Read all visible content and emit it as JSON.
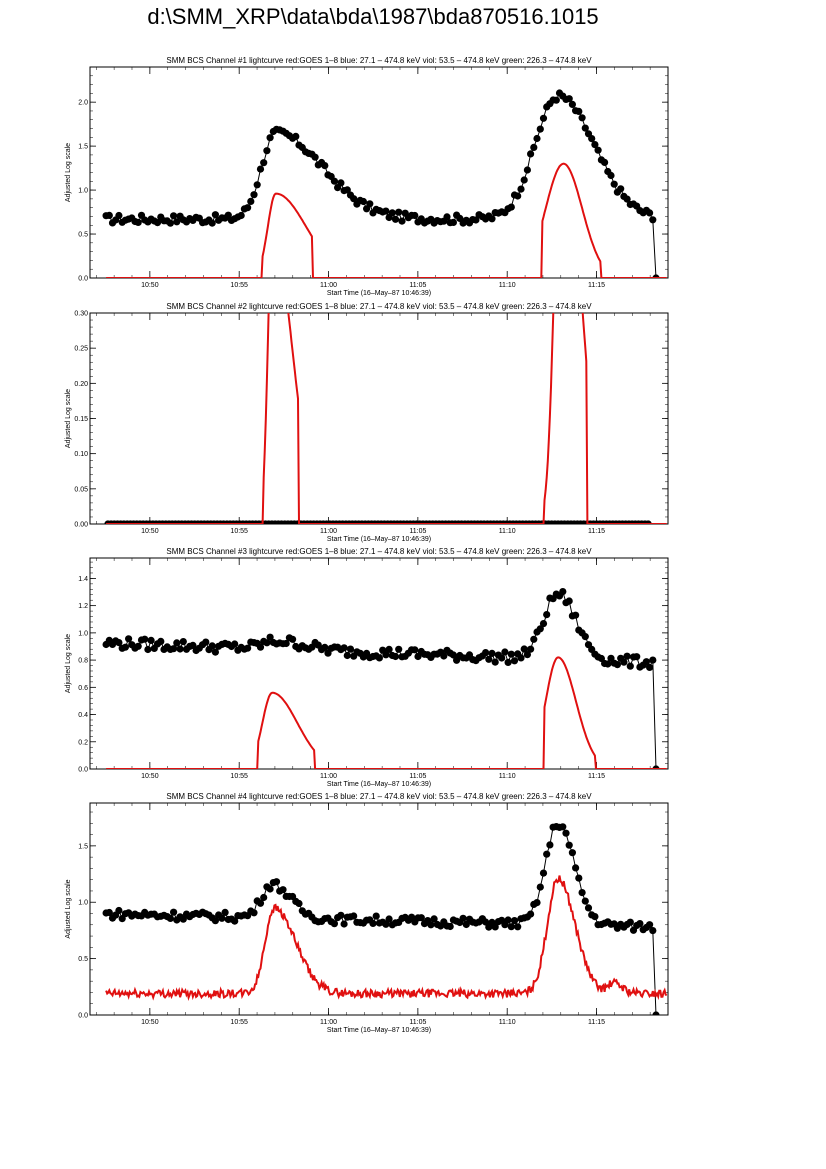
{
  "page_title": "d:\\SMM_XRP\\data\\bda\\1987\\bda870516.1015",
  "colors": {
    "goes": "#e01010",
    "bcs": "#000000",
    "frame": "#000000",
    "background": "#ffffff"
  },
  "chart_data": [
    {
      "type": "line",
      "title": "SMM BCS Channel #1 lightcurve  red:GOES 1–8  blue: 27.1 – 474.8 keV  viol: 53.5 – 474.8 keV  green: 226.3 – 474.8 keV",
      "xlabel": "Start Time (16–May–87 10:46:39)",
      "ylabel": "Adjusted Log scale",
      "xlim": [
        "10:46:39",
        "11:19:00"
      ],
      "ylim": [
        0,
        2.4
      ],
      "x_ticks": [
        "10:50",
        "10:55",
        "11:00",
        "11:05",
        "11:10",
        "11:15"
      ],
      "y_ticks": [
        "0.0",
        "0.5",
        "1.0",
        "1.5",
        "2.0"
      ],
      "y_tick_values": [
        0,
        0.5,
        1.0,
        1.5,
        2.0
      ],
      "series": [
        {
          "color": "#000000",
          "marker": "circle",
          "profile": {
            "base": 0.67,
            "drift": 0.0,
            "noise": 0.05,
            "drop_at": 31.5,
            "end": 31.7,
            "peaks": [
              {
                "t": 10.4,
                "amp": 0.98,
                "rise": 0.8,
                "decay": 2.6
              },
              {
                "t": 26.2,
                "amp": 1.4,
                "rise": 1.3,
                "decay": 2.0
              }
            ]
          }
        },
        {
          "color": "#e01010",
          "marker": "none",
          "profile": {
            "base": 0.0,
            "noise": 0.0,
            "end": 32.3,
            "peaks": [
              {
                "t": 10.4,
                "amp": 0.96,
                "rise": 0.45,
                "decay": 1.7,
                "start": 9.65,
                "stop": 12.45
              },
              {
                "t": 26.5,
                "amp": 1.3,
                "rise": 1.0,
                "decay": 1.05,
                "start": 25.3,
                "stop": 28.6
              }
            ]
          }
        }
      ]
    },
    {
      "type": "line",
      "title": "SMM BCS Channel #2 lightcurve  red:GOES 1–8  blue: 27.1 – 474.8 keV  viol: 53.5 – 474.8 keV  green: 226.3 – 474.8 keV",
      "xlabel": "Start Time (16–May–87 10:46:39)",
      "ylabel": "Adjusted Log scale",
      "xlim": [
        "10:46:39",
        "11:19:00"
      ],
      "ylim": [
        0,
        0.3
      ],
      "x_ticks": [
        "10:50",
        "10:55",
        "11:00",
        "11:05",
        "11:10",
        "11:15"
      ],
      "y_ticks": [
        "0.00",
        "0.05",
        "0.10",
        "0.15",
        "0.20",
        "0.25",
        "0.30"
      ],
      "y_tick_values": [
        0,
        0.05,
        0.1,
        0.15,
        0.2,
        0.25,
        0.3
      ],
      "series": [
        {
          "color": "#000000",
          "marker": "circle",
          "profile": {
            "base": 0.0,
            "noise": 0.0,
            "start": 1.0,
            "end": 31.3,
            "peaks": []
          }
        },
        {
          "color": "#e01010",
          "marker": "none",
          "profile": {
            "base": 0.0,
            "noise": 0.0,
            "end": 32.3,
            "clip": true,
            "peaks": [
              {
                "t": 10.2,
                "amp": 0.42,
                "rise": 0.25,
                "decay": 1.1,
                "start": 9.7,
                "stop": 11.7
              },
              {
                "t": 26.4,
                "amp": 0.6,
                "rise": 0.4,
                "decay": 1.0,
                "start": 25.4,
                "stop": 27.8
              }
            ]
          }
        }
      ]
    },
    {
      "type": "line",
      "title": "SMM BCS Channel #3 lightcurve  red:GOES 1–8  blue: 27.1 – 474.8 keV  viol: 53.5 – 474.8 keV  green: 226.3 – 474.8 keV",
      "xlabel": "Start Time (16–May–87 10:46:39)",
      "ylabel": "Adjusted Log scale",
      "xlim": [
        "10:46:39",
        "11:19:00"
      ],
      "ylim": [
        0,
        1.55
      ],
      "x_ticks": [
        "10:50",
        "10:55",
        "11:00",
        "11:05",
        "11:10",
        "11:15"
      ],
      "y_ticks": [
        "0.0",
        "0.2",
        "0.4",
        "0.6",
        "0.8",
        "1.0",
        "1.2",
        "1.4"
      ],
      "y_tick_values": [
        0,
        0.2,
        0.4,
        0.6,
        0.8,
        1.0,
        1.2,
        1.4
      ],
      "series": [
        {
          "color": "#000000",
          "marker": "circle",
          "profile": {
            "base": 0.93,
            "drift": -0.15,
            "noise": 0.04,
            "drop_at": 31.5,
            "end": 31.7,
            "peaks": [
              {
                "t": 26.2,
                "amp": 0.48,
                "rise": 0.8,
                "decay": 1.0
              },
              {
                "t": 10.5,
                "amp": 0.06,
                "rise": 0.8,
                "decay": 1.5
              }
            ]
          }
        },
        {
          "color": "#e01010",
          "marker": "none",
          "profile": {
            "base": 0.0,
            "noise": 0.0,
            "end": 32.3,
            "peaks": [
              {
                "t": 10.2,
                "amp": 0.56,
                "rise": 0.55,
                "decay": 1.4,
                "start": 9.4,
                "stop": 12.6
              },
              {
                "t": 26.2,
                "amp": 0.82,
                "rise": 0.7,
                "decay": 1.0,
                "start": 25.4,
                "stop": 28.3
              }
            ]
          }
        }
      ]
    },
    {
      "type": "line",
      "title": "SMM BCS Channel #4 lightcurve  red:GOES 1–8  blue: 27.1 – 474.8 keV  viol: 53.5 – 474.8 keV  green: 226.3 – 474.8 keV",
      "xlabel": "Start Time (16–May–87 10:46:39)",
      "ylabel": "Adjusted Log scale",
      "xlim": [
        "10:46:39",
        "11:19:00"
      ],
      "ylim": [
        0,
        1.88
      ],
      "x_ticks": [
        "10:50",
        "10:55",
        "11:00",
        "11:05",
        "11:10",
        "11:15"
      ],
      "y_ticks": [
        "0.0",
        "0.5",
        "1.0",
        "1.5"
      ],
      "y_tick_values": [
        0,
        0.5,
        1.0,
        1.5
      ],
      "series": [
        {
          "color": "#000000",
          "marker": "circle",
          "profile": {
            "base": 0.9,
            "drift": -0.12,
            "noise": 0.04,
            "drop_at": 31.5,
            "end": 31.7,
            "peaks": [
              {
                "t": 10.2,
                "amp": 0.3,
                "rise": 0.6,
                "decay": 1.0
              },
              {
                "t": 26.2,
                "amp": 0.9,
                "rise": 0.7,
                "decay": 0.9
              }
            ]
          }
        },
        {
          "color": "#e01010",
          "marker": "none",
          "profile": {
            "base": 0.19,
            "noise": 0.035,
            "end": 32.3,
            "peaks": [
              {
                "t": 10.3,
                "amp": 0.76,
                "rise": 0.5,
                "decay": 1.2
              },
              {
                "t": 26.2,
                "amp": 1.02,
                "rise": 0.6,
                "decay": 0.95
              },
              {
                "t": 29.3,
                "amp": 0.09,
                "rise": 0.3,
                "decay": 0.5
              }
            ]
          }
        }
      ]
    }
  ]
}
